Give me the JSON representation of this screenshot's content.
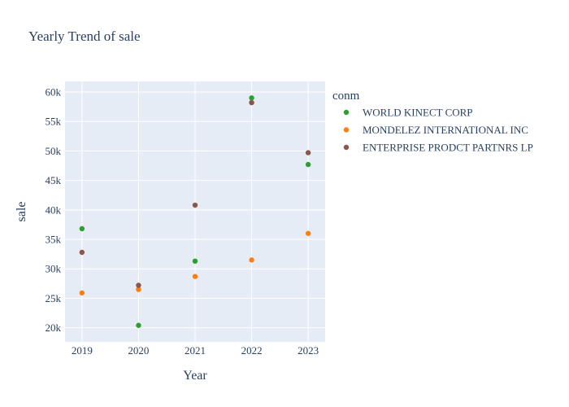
{
  "chart_data": {
    "type": "scatter",
    "title": "Yearly Trend of sale",
    "xlabel": "Year",
    "ylabel": "sale",
    "x": [
      "2019",
      "2020",
      "2021",
      "2022",
      "2023"
    ],
    "xlim": [
      2018.7,
      2023.3
    ],
    "ylim": [
      17600,
      61800
    ],
    "yticks": [
      20000,
      25000,
      30000,
      35000,
      40000,
      45000,
      50000,
      55000,
      60000
    ],
    "ytick_labels": [
      "20k",
      "25k",
      "30k",
      "35k",
      "40k",
      "45k",
      "50k",
      "55k",
      "60k"
    ],
    "legend_title": "conm",
    "legend_position": "right",
    "grid": true,
    "plot_bgcolor": "#e5ecf6",
    "series": [
      {
        "name": "WORLD KINECT CORP",
        "color": "#2ca02c",
        "values": [
          36800,
          20400,
          31300,
          59000,
          47700
        ]
      },
      {
        "name": "MONDELEZ INTERNATIONAL INC",
        "color": "#ff7f0e",
        "values": [
          25900,
          26500,
          28700,
          31500,
          36000
        ]
      },
      {
        "name": "ENTERPRISE PRODCT PARTNRS LP",
        "color": "#8c564b",
        "values": [
          32800,
          27200,
          40800,
          58200,
          49700
        ]
      }
    ]
  }
}
